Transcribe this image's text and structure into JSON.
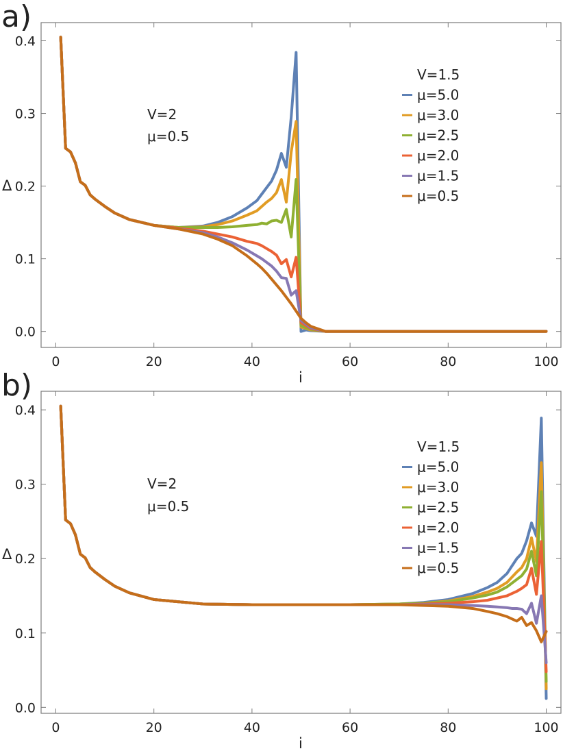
{
  "chart_data": [
    {
      "type": "line",
      "panel_label": "a)",
      "xlabel": "i",
      "ylabel": "Δ",
      "xlim": [
        -3,
        103
      ],
      "ylim": [
        -0.022,
        0.425
      ],
      "x_ticks": [
        "0",
        "20",
        "40",
        "60",
        "80",
        "100"
      ],
      "x_tick_values": [
        0,
        20,
        40,
        60,
        80,
        100
      ],
      "y_ticks": [
        "0.0",
        "0.1",
        "0.2",
        "0.3",
        "0.4"
      ],
      "y_tick_values": [
        0,
        0.1,
        0.2,
        0.3,
        0.4
      ],
      "annotation": {
        "V": "V=2",
        "mu": "μ=0.5"
      },
      "legend": {
        "title": "V=1.5",
        "placement": "top-right"
      },
      "series": [
        {
          "name": "μ=5.0",
          "color": "#5e81b5",
          "x": [
            1,
            2,
            3,
            4,
            5,
            6,
            7,
            8,
            10,
            12,
            15,
            20,
            25,
            30,
            33,
            36,
            39,
            41,
            42,
            43,
            44,
            45,
            46,
            47,
            48,
            49,
            50,
            51,
            52,
            55,
            60,
            70,
            80,
            90,
            100
          ],
          "y": [
            0.405,
            0.252,
            0.247,
            0.232,
            0.206,
            0.201,
            0.188,
            0.182,
            0.172,
            0.163,
            0.154,
            0.146,
            0.143,
            0.145,
            0.15,
            0.158,
            0.17,
            0.18,
            0.189,
            0.198,
            0.207,
            0.222,
            0.245,
            0.226,
            0.295,
            0.384,
            0.0,
            0.002,
            0.001,
            0,
            0,
            0,
            0,
            0,
            0
          ]
        },
        {
          "name": "μ=3.0",
          "color": "#e19c24",
          "x": [
            1,
            2,
            3,
            4,
            5,
            6,
            7,
            8,
            10,
            12,
            15,
            20,
            25,
            30,
            33,
            36,
            39,
            41,
            42,
            43,
            44,
            45,
            46,
            47,
            48,
            49,
            50,
            51,
            52,
            55,
            60,
            70,
            80,
            90,
            100
          ],
          "y": [
            0.405,
            0.252,
            0.247,
            0.232,
            0.206,
            0.201,
            0.188,
            0.182,
            0.172,
            0.163,
            0.154,
            0.146,
            0.143,
            0.144,
            0.147,
            0.152,
            0.16,
            0.166,
            0.172,
            0.178,
            0.183,
            0.191,
            0.209,
            0.178,
            0.247,
            0.289,
            0.006,
            0.004,
            0.002,
            0,
            0,
            0,
            0,
            0,
            0
          ]
        },
        {
          "name": "μ=2.5",
          "color": "#8fb032",
          "x": [
            1,
            2,
            3,
            4,
            5,
            6,
            7,
            8,
            10,
            12,
            15,
            20,
            25,
            30,
            33,
            36,
            39,
            41,
            42,
            43,
            44,
            45,
            46,
            47,
            48,
            49,
            50,
            51,
            52,
            55,
            60,
            70,
            80,
            90,
            100
          ],
          "y": [
            0.405,
            0.252,
            0.247,
            0.232,
            0.206,
            0.201,
            0.188,
            0.182,
            0.172,
            0.163,
            0.154,
            0.146,
            0.143,
            0.143,
            0.143,
            0.144,
            0.146,
            0.147,
            0.149,
            0.148,
            0.152,
            0.153,
            0.15,
            0.168,
            0.13,
            0.209,
            0.008,
            0.005,
            0.003,
            0,
            0,
            0,
            0,
            0,
            0
          ]
        },
        {
          "name": "μ=2.0",
          "color": "#eb6235",
          "x": [
            1,
            2,
            3,
            4,
            5,
            6,
            7,
            8,
            10,
            12,
            15,
            20,
            25,
            30,
            33,
            36,
            39,
            41,
            42,
            43,
            44,
            45,
            46,
            47,
            48,
            49,
            50,
            51,
            52,
            55,
            60,
            70,
            80,
            90,
            100
          ],
          "y": [
            0.405,
            0.252,
            0.247,
            0.232,
            0.206,
            0.201,
            0.188,
            0.182,
            0.172,
            0.163,
            0.154,
            0.146,
            0.142,
            0.138,
            0.134,
            0.13,
            0.124,
            0.121,
            0.118,
            0.114,
            0.11,
            0.105,
            0.093,
            0.099,
            0.075,
            0.102,
            0.012,
            0.008,
            0.004,
            0,
            0,
            0,
            0,
            0,
            0
          ]
        },
        {
          "name": "μ=1.5",
          "color": "#8778b3",
          "x": [
            1,
            2,
            3,
            4,
            5,
            6,
            7,
            8,
            10,
            12,
            15,
            20,
            25,
            30,
            33,
            36,
            39,
            41,
            42,
            43,
            44,
            45,
            46,
            47,
            48,
            49,
            50,
            51,
            52,
            55,
            60,
            70,
            80,
            90,
            100
          ],
          "y": [
            0.405,
            0.252,
            0.247,
            0.232,
            0.206,
            0.201,
            0.188,
            0.182,
            0.172,
            0.163,
            0.154,
            0.146,
            0.141,
            0.136,
            0.13,
            0.122,
            0.112,
            0.104,
            0.1,
            0.095,
            0.09,
            0.083,
            0.074,
            0.073,
            0.05,
            0.056,
            0.015,
            0.01,
            0.005,
            0,
            0,
            0,
            0,
            0,
            0
          ]
        },
        {
          "name": "μ=0.5",
          "color": "#c56e1a",
          "x": [
            1,
            2,
            3,
            4,
            5,
            6,
            7,
            8,
            10,
            12,
            15,
            20,
            25,
            30,
            33,
            36,
            39,
            41,
            42,
            43,
            44,
            45,
            46,
            47,
            48,
            49,
            50,
            51,
            52,
            55,
            60,
            70,
            80,
            90,
            100
          ],
          "y": [
            0.405,
            0.252,
            0.247,
            0.232,
            0.206,
            0.201,
            0.188,
            0.182,
            0.172,
            0.163,
            0.154,
            0.146,
            0.141,
            0.134,
            0.127,
            0.118,
            0.104,
            0.093,
            0.087,
            0.08,
            0.072,
            0.064,
            0.056,
            0.047,
            0.038,
            0.028,
            0.018,
            0.012,
            0.007,
            0,
            0,
            0,
            0,
            0,
            0
          ]
        }
      ]
    },
    {
      "type": "line",
      "panel_label": "b)",
      "xlabel": "i",
      "ylabel": "Δ",
      "xlim": [
        -3,
        103
      ],
      "ylim": [
        -0.008,
        0.425
      ],
      "x_ticks": [
        "0",
        "20",
        "40",
        "60",
        "80",
        "100"
      ],
      "x_tick_values": [
        0,
        20,
        40,
        60,
        80,
        100
      ],
      "y_ticks": [
        "0.0",
        "0.1",
        "0.2",
        "0.3",
        "0.4"
      ],
      "y_tick_values": [
        0,
        0.1,
        0.2,
        0.3,
        0.4
      ],
      "annotation": {
        "V": "V=2",
        "mu": "μ=0.5"
      },
      "legend": {
        "title": "V=1.5",
        "placement": "top-right"
      },
      "series": [
        {
          "name": "μ=5.0",
          "color": "#5e81b5",
          "x": [
            1,
            2,
            3,
            4,
            5,
            6,
            7,
            8,
            10,
            12,
            15,
            20,
            30,
            40,
            50,
            60,
            70,
            75,
            80,
            85,
            88,
            90,
            92,
            93,
            94,
            95,
            96,
            97,
            98,
            99,
            100
          ],
          "y": [
            0.405,
            0.252,
            0.247,
            0.232,
            0.206,
            0.201,
            0.188,
            0.182,
            0.172,
            0.163,
            0.154,
            0.145,
            0.139,
            0.138,
            0.138,
            0.138,
            0.139,
            0.141,
            0.145,
            0.153,
            0.161,
            0.168,
            0.18,
            0.19,
            0.2,
            0.207,
            0.224,
            0.248,
            0.23,
            0.389,
            0.012
          ]
        },
        {
          "name": "μ=3.0",
          "color": "#e19c24",
          "x": [
            1,
            2,
            3,
            4,
            5,
            6,
            7,
            8,
            10,
            12,
            15,
            20,
            30,
            40,
            50,
            60,
            70,
            75,
            80,
            85,
            88,
            90,
            92,
            93,
            94,
            95,
            96,
            97,
            98,
            99,
            100
          ],
          "y": [
            0.405,
            0.252,
            0.247,
            0.232,
            0.206,
            0.201,
            0.188,
            0.182,
            0.172,
            0.163,
            0.154,
            0.145,
            0.139,
            0.138,
            0.138,
            0.138,
            0.139,
            0.14,
            0.143,
            0.149,
            0.155,
            0.16,
            0.168,
            0.175,
            0.182,
            0.188,
            0.2,
            0.228,
            0.196,
            0.329,
            0.025
          ]
        },
        {
          "name": "μ=2.5",
          "color": "#8fb032",
          "x": [
            1,
            2,
            3,
            4,
            5,
            6,
            7,
            8,
            10,
            12,
            15,
            20,
            30,
            40,
            50,
            60,
            70,
            75,
            80,
            85,
            88,
            90,
            92,
            93,
            94,
            95,
            96,
            97,
            98,
            99,
            100
          ],
          "y": [
            0.405,
            0.252,
            0.247,
            0.232,
            0.206,
            0.201,
            0.188,
            0.182,
            0.172,
            0.163,
            0.154,
            0.145,
            0.139,
            0.138,
            0.138,
            0.138,
            0.139,
            0.14,
            0.142,
            0.147,
            0.151,
            0.155,
            0.162,
            0.167,
            0.172,
            0.177,
            0.186,
            0.21,
            0.177,
            0.29,
            0.035
          ]
        },
        {
          "name": "μ=2.0",
          "color": "#eb6235",
          "x": [
            1,
            2,
            3,
            4,
            5,
            6,
            7,
            8,
            10,
            12,
            15,
            20,
            30,
            40,
            50,
            60,
            70,
            75,
            80,
            85,
            88,
            90,
            92,
            93,
            94,
            95,
            96,
            97,
            98,
            99,
            100
          ],
          "y": [
            0.405,
            0.252,
            0.247,
            0.232,
            0.206,
            0.201,
            0.188,
            0.182,
            0.172,
            0.163,
            0.154,
            0.145,
            0.139,
            0.138,
            0.138,
            0.138,
            0.138,
            0.139,
            0.14,
            0.142,
            0.144,
            0.147,
            0.15,
            0.153,
            0.156,
            0.16,
            0.165,
            0.187,
            0.152,
            0.223,
            0.048
          ]
        },
        {
          "name": "μ=1.5",
          "color": "#8778b3",
          "x": [
            1,
            2,
            3,
            4,
            5,
            6,
            7,
            8,
            10,
            12,
            15,
            20,
            30,
            40,
            50,
            60,
            70,
            75,
            80,
            85,
            88,
            90,
            92,
            93,
            94,
            95,
            96,
            97,
            98,
            99,
            100
          ],
          "y": [
            0.405,
            0.252,
            0.247,
            0.232,
            0.206,
            0.201,
            0.188,
            0.182,
            0.172,
            0.163,
            0.154,
            0.145,
            0.139,
            0.138,
            0.138,
            0.138,
            0.138,
            0.138,
            0.138,
            0.137,
            0.136,
            0.135,
            0.134,
            0.133,
            0.133,
            0.132,
            0.126,
            0.14,
            0.113,
            0.15,
            0.06
          ]
        },
        {
          "name": "μ=0.5",
          "color": "#c56e1a",
          "x": [
            1,
            2,
            3,
            4,
            5,
            6,
            7,
            8,
            10,
            12,
            15,
            20,
            30,
            40,
            50,
            60,
            70,
            75,
            80,
            85,
            88,
            90,
            92,
            93,
            94,
            95,
            96,
            97,
            98,
            99,
            100
          ],
          "y": [
            0.405,
            0.252,
            0.247,
            0.232,
            0.206,
            0.201,
            0.188,
            0.182,
            0.172,
            0.163,
            0.154,
            0.145,
            0.139,
            0.138,
            0.138,
            0.138,
            0.138,
            0.137,
            0.136,
            0.133,
            0.129,
            0.126,
            0.122,
            0.119,
            0.116,
            0.121,
            0.11,
            0.114,
            0.103,
            0.088,
            0.102
          ]
        }
      ]
    }
  ]
}
